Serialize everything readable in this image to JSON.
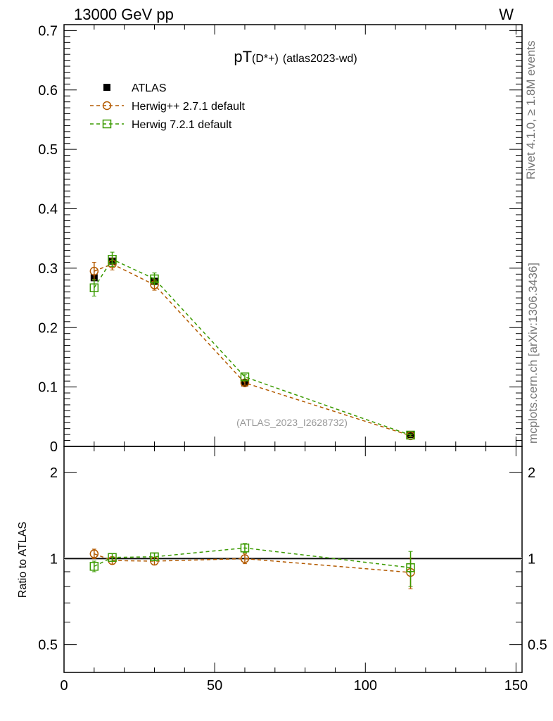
{
  "header": {
    "energy": "13000 GeV pp",
    "process": "W"
  },
  "side_text": {
    "rivet": "Rivet 4.1.0, ≥ 1.8M events",
    "mcplots": "mcplots.cern.ch [arXiv:1306.3436]"
  },
  "watermark": "(ATLAS_2023_I2628732)",
  "chart_data": [
    {
      "type": "scatter",
      "title_main": "pT",
      "title_sub": "(D*+)",
      "title_tag": "(atlas2023-wd)",
      "xlim": [
        0,
        152
      ],
      "ylim": [
        0,
        0.71
      ],
      "x_ticks": [
        0,
        50,
        100,
        150
      ],
      "y_ticks": [
        0,
        0.1,
        0.2,
        0.3,
        0.4,
        0.5,
        0.6,
        0.7
      ],
      "y_tick_labels": [
        "0",
        "0.1",
        "0.2",
        "0.3",
        "0.4",
        "0.5",
        "0.6",
        "0.7"
      ],
      "legend_position": "top-left",
      "x": [
        10,
        16,
        30,
        60,
        115
      ],
      "series": [
        {
          "name": "ATLAS",
          "color": "#000000",
          "marker": "filled-square",
          "values": [
            0.284,
            0.312,
            0.278,
            0.107,
            0.02
          ],
          "errors": [
            0.004,
            0.005,
            0.005,
            0.003,
            0.002
          ]
        },
        {
          "name": "Herwig++ 2.7.1 default",
          "color": "#b35a00",
          "marker": "open-circle",
          "values": [
            0.295,
            0.307,
            0.272,
            0.107,
            0.018
          ],
          "errors": [
            0.015,
            0.01,
            0.009,
            0.004,
            0.002
          ]
        },
        {
          "name": "Herwig 7.2.1 default",
          "color": "#3a9a00",
          "marker": "open-square",
          "values": [
            0.267,
            0.315,
            0.282,
            0.117,
            0.019
          ],
          "errors": [
            0.014,
            0.012,
            0.01,
            0.004,
            0.002
          ]
        }
      ]
    },
    {
      "type": "scatter",
      "ylabel": "Ratio to ATLAS",
      "yscale": "log",
      "ylim": [
        0.4,
        2.47
      ],
      "y_ticks": [
        0.5,
        1,
        2
      ],
      "y_tick_labels": [
        "0.5",
        "1",
        "2"
      ],
      "x": [
        10,
        16,
        30,
        60,
        115
      ],
      "series": [
        {
          "name": "Herwig++ 2.7.1 default",
          "color": "#b35a00",
          "values": [
            1.04,
            0.985,
            0.98,
            1.0,
            0.895
          ],
          "errors": [
            0.04,
            0.03,
            0.03,
            0.04,
            0.11
          ]
        },
        {
          "name": "Herwig 7.2.1 default",
          "color": "#3a9a00",
          "values": [
            0.94,
            1.01,
            1.015,
            1.09,
            0.93
          ],
          "errors": [
            0.04,
            0.03,
            0.03,
            0.04,
            0.13
          ]
        }
      ]
    }
  ]
}
